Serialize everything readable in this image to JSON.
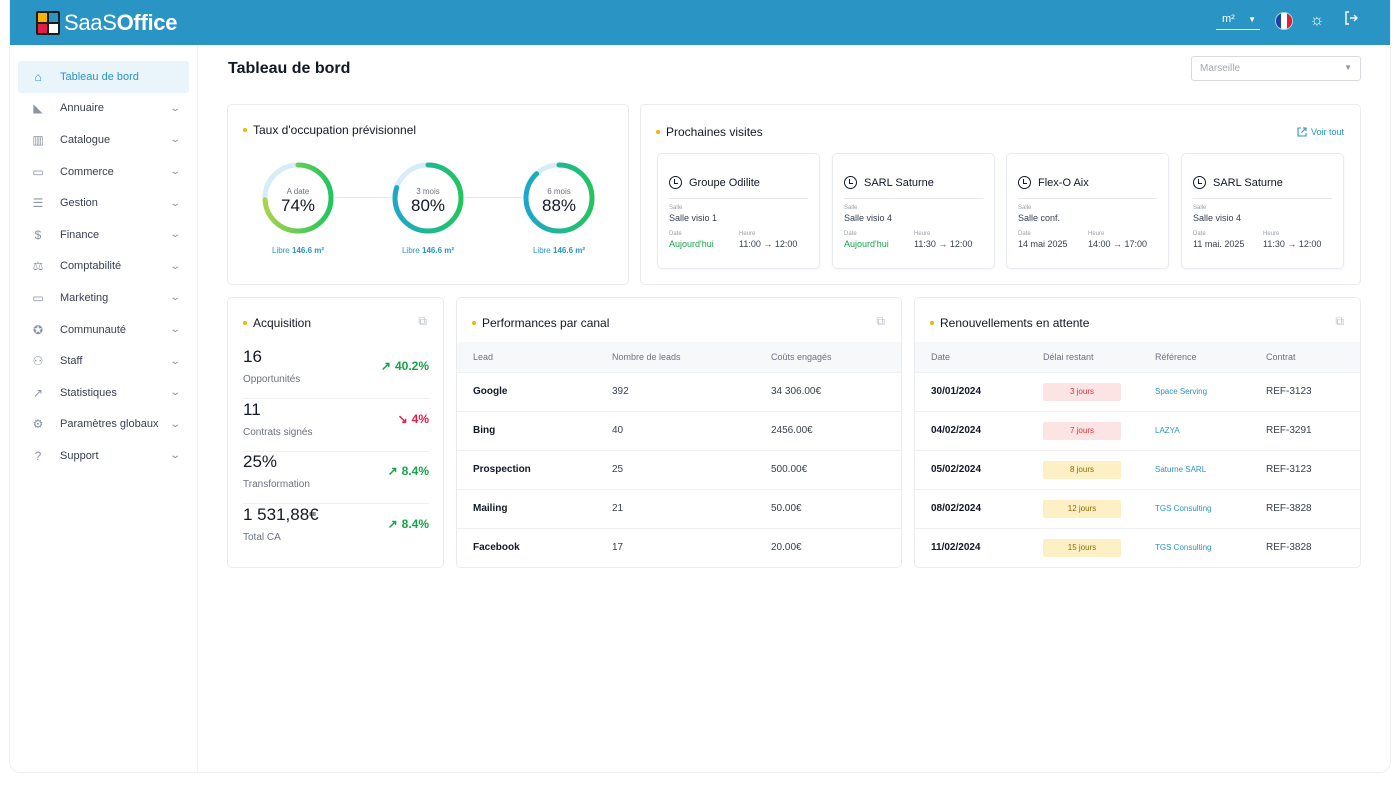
{
  "app": {
    "brand_light": "SaaS",
    "brand_bold": "Office"
  },
  "topbar": {
    "unit": "m²"
  },
  "sidebar": {
    "items": [
      {
        "label": "Tableau de bord",
        "icon": "home-icon",
        "glyph": "⌂",
        "active": true
      },
      {
        "label": "Annuaire",
        "icon": "book-icon",
        "glyph": "◣"
      },
      {
        "label": "Catalogue",
        "icon": "catalog-icon",
        "glyph": "▥"
      },
      {
        "label": "Commerce",
        "icon": "briefcase-icon",
        "glyph": "▭"
      },
      {
        "label": "Gestion",
        "icon": "list-icon",
        "glyph": "☰"
      },
      {
        "label": "Finance",
        "icon": "dollar-icon",
        "glyph": "$"
      },
      {
        "label": "Comptabilité",
        "icon": "scale-icon",
        "glyph": "⚖"
      },
      {
        "label": "Marketing",
        "icon": "monitor-icon",
        "glyph": "▭"
      },
      {
        "label": "Communauté",
        "icon": "community-icon",
        "glyph": "✪"
      },
      {
        "label": "Staff",
        "icon": "user-add-icon",
        "glyph": "⚇"
      },
      {
        "label": "Statistiques",
        "icon": "chart-icon",
        "glyph": "↗"
      },
      {
        "label": "Paramètres globaux",
        "icon": "gear-icon",
        "glyph": "⚙"
      },
      {
        "label": "Support",
        "icon": "help-icon",
        "glyph": "?"
      }
    ]
  },
  "page": {
    "title": "Tableau de bord",
    "city": "Marseille"
  },
  "occupancy": {
    "title": "Taux d'occupation prévisionnel",
    "gauges": [
      {
        "label": "A date",
        "value": "74%",
        "fraction": 0.74,
        "libre_prefix": "Libre",
        "libre_value": "146.6 m²"
      },
      {
        "label": "3 mois",
        "value": "80%",
        "fraction": 0.8,
        "libre_prefix": "Libre",
        "libre_value": "146.6 m²"
      },
      {
        "label": "6 mois",
        "value": "88%",
        "fraction": 0.88,
        "libre_prefix": "Libre",
        "libre_value": "146.6 m²"
      }
    ]
  },
  "visits": {
    "title": "Prochaines visites",
    "link": "Voir tout",
    "label_salle": "Salle",
    "label_date": "Date",
    "label_heure": "Heure",
    "items": [
      {
        "name": "Groupe Odilite",
        "salle": "Salle visio 1",
        "date": "Aujourd'hui",
        "today": true,
        "heure": "11:00 → 12:00"
      },
      {
        "name": "SARL Saturne",
        "salle": "Salle visio 4",
        "date": "Aujourd'hui",
        "today": true,
        "heure": "11:30 → 12:00"
      },
      {
        "name": "Flex-O Aix",
        "salle": "Salle conf.",
        "date": "14 mai 2025",
        "today": false,
        "heure": "14:00 → 17:00"
      },
      {
        "name": "SARL Saturne",
        "salle": "Salle visio 4",
        "date": "11 mai. 2025",
        "today": false,
        "heure": "11:30 → 12:00"
      }
    ]
  },
  "acquisition": {
    "title": "Acquisition",
    "rows": [
      {
        "value": "16",
        "label": "Opportunités",
        "pct": "40.2%",
        "trend": "up"
      },
      {
        "value": "11",
        "label": "Contrats signés",
        "pct": "4%",
        "trend": "down"
      },
      {
        "value": "25%",
        "label": "Transformation",
        "pct": "8.4%",
        "trend": "up"
      },
      {
        "value": "1 531,88€",
        "label": "Total CA",
        "pct": "8.4%",
        "trend": "up"
      }
    ]
  },
  "performance": {
    "title": "Performances par canal",
    "headers": [
      "Lead",
      "Nombre de leads",
      "Coûts engagés"
    ],
    "rows": [
      {
        "lead": "Google",
        "count": "392",
        "cost": "34 306.00€"
      },
      {
        "lead": "Bing",
        "count": "40",
        "cost": "2456.00€"
      },
      {
        "lead": "Prospection",
        "count": "25",
        "cost": "500.00€"
      },
      {
        "lead": "Mailing",
        "count": "21",
        "cost": "50.00€"
      },
      {
        "lead": "Facebook",
        "count": "17",
        "cost": "20.00€"
      }
    ]
  },
  "renewals": {
    "title": "Renouvellements en attente",
    "headers": [
      "Date",
      "Délai restant",
      "Référence",
      "Contrat"
    ],
    "rows": [
      {
        "date": "30/01/2024",
        "delay": "3 jours",
        "level": "red",
        "ref": "Space Serving",
        "contract": "REF-3123"
      },
      {
        "date": "04/02/2024",
        "delay": "7 jours",
        "level": "red",
        "ref": "LAZYA",
        "contract": "REF-3291"
      },
      {
        "date": "05/02/2024",
        "delay": "8 jours",
        "level": "yellow",
        "ref": "Saturne SARL",
        "contract": "REF-3123"
      },
      {
        "date": "08/02/2024",
        "delay": "12 jours",
        "level": "yellow",
        "ref": "TGS Consulting",
        "contract": "REF-3828"
      },
      {
        "date": "11/02/2024",
        "delay": "15 jours",
        "level": "yellow",
        "ref": "TGS Consulting",
        "contract": "REF-3828"
      }
    ]
  }
}
